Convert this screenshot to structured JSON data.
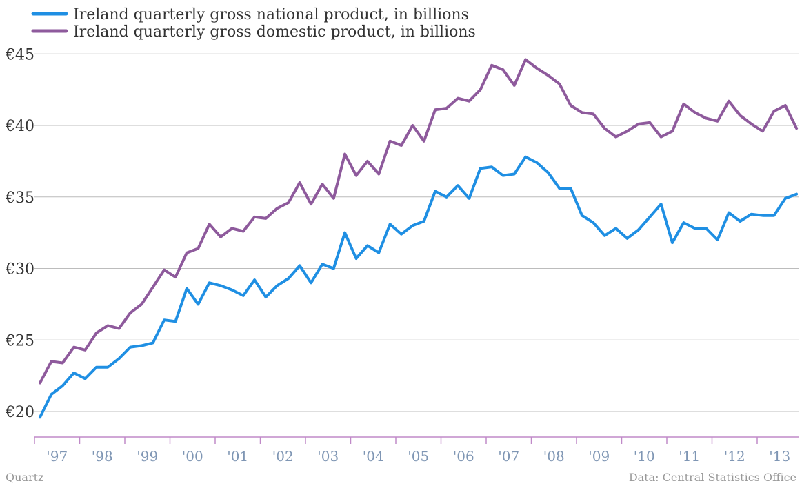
{
  "chart_data": {
    "type": "line",
    "x_start_year": 1997,
    "x_quarters_per_year": 4,
    "x_tick_labels": [
      "'97",
      "'98",
      "'99",
      "'00",
      "'01",
      "'02",
      "'03",
      "'04",
      "'05",
      "'06",
      "'07",
      "'08",
      "'09",
      "'10",
      "'11",
      "'12",
      "'13"
    ],
    "y_tick_labels": [
      "€20",
      "€25",
      "€30",
      "€35",
      "€40",
      "€45"
    ],
    "y_ticks": [
      20,
      25,
      30,
      35,
      40,
      45
    ],
    "ylim": [
      18,
      46
    ],
    "grid": true,
    "legend_position": "top-left",
    "series": [
      {
        "name": "Ireland quarterly gross national product, in billions",
        "color": "#1f8fe3",
        "values": [
          19.6,
          21.2,
          21.8,
          22.7,
          22.3,
          23.1,
          23.1,
          23.7,
          24.5,
          24.6,
          24.8,
          26.4,
          26.3,
          28.6,
          27.5,
          29.0,
          28.8,
          28.5,
          28.1,
          29.2,
          28.0,
          28.8,
          29.3,
          30.2,
          29.0,
          30.3,
          30.0,
          32.5,
          30.7,
          31.6,
          31.1,
          33.1,
          32.4,
          33.0,
          33.3,
          35.4,
          35.0,
          35.8,
          34.9,
          37.0,
          37.1,
          36.5,
          36.6,
          37.8,
          37.4,
          36.7,
          35.6,
          35.6,
          33.7,
          33.2,
          32.3,
          32.8,
          32.1,
          32.7,
          33.6,
          34.5,
          31.8,
          33.2,
          32.8,
          32.8,
          32.0,
          33.9,
          33.3,
          33.8,
          33.7,
          33.7,
          34.9,
          35.2
        ]
      },
      {
        "name": "Ireland quarterly gross domestic product, in billions",
        "color": "#8e5a9c",
        "values": [
          22.0,
          23.5,
          23.4,
          24.5,
          24.3,
          25.5,
          26.0,
          25.8,
          26.9,
          27.5,
          28.7,
          29.9,
          29.4,
          31.1,
          31.4,
          33.1,
          32.2,
          32.8,
          32.6,
          33.6,
          33.5,
          34.2,
          34.6,
          36.0,
          34.5,
          35.9,
          34.9,
          38.0,
          36.5,
          37.5,
          36.6,
          38.9,
          38.6,
          40.0,
          38.9,
          41.1,
          41.2,
          41.9,
          41.7,
          42.5,
          44.2,
          43.9,
          42.8,
          44.6,
          44.0,
          43.5,
          42.9,
          41.4,
          40.9,
          40.8,
          39.8,
          39.2,
          39.6,
          40.1,
          40.2,
          39.2,
          39.6,
          41.5,
          40.9,
          40.5,
          40.3,
          41.7,
          40.7,
          40.1,
          39.6,
          41.0,
          41.4,
          39.8
        ]
      }
    ]
  },
  "footer": {
    "source": "Quartz",
    "credit": "Data: Central Statistics Office"
  }
}
